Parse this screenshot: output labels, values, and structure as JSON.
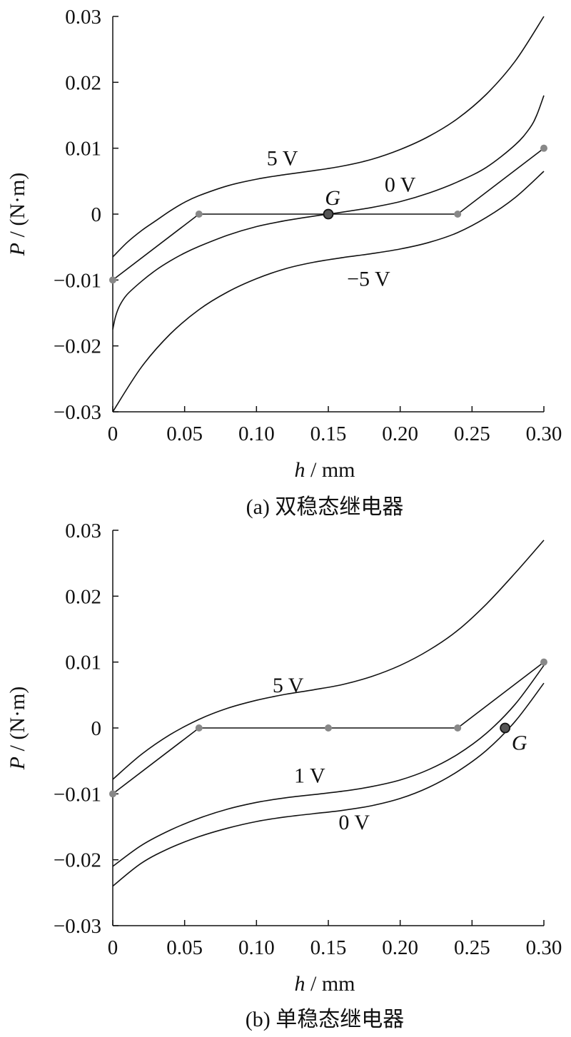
{
  "colors": {
    "curve": "#111111",
    "point": "#888888",
    "equilibrium": "#555555"
  },
  "chart_data": [
    {
      "type": "line",
      "caption": "(a)  双稳态继电器",
      "xlabel_var": "h",
      "xlabel_unit": " / mm",
      "ylabel_var": "P",
      "ylabel_unit": " / (N·m)",
      "xlim": [
        0,
        0.3
      ],
      "ylim": [
        -0.03,
        0.03
      ],
      "xticks": [
        0,
        0.05,
        0.1,
        0.15,
        0.2,
        0.25,
        0.3
      ],
      "xtick_labels": [
        "0",
        "0.05",
        "0.10",
        "0.15",
        "0.20",
        "0.25",
        "0.30"
      ],
      "yticks": [
        0.03,
        0.02,
        0.01,
        0,
        -0.01,
        -0.02,
        -0.03
      ],
      "ytick_labels": [
        "0.03",
        "0.02",
        "0.01",
        "0",
        "−0.01",
        "−0.02",
        "−0.03"
      ],
      "grid": false,
      "series": [
        {
          "name": "5 V",
          "x": [
            0,
            0.01,
            0.02,
            0.03,
            0.04,
            0.05,
            0.06,
            0.08,
            0.1,
            0.12,
            0.14,
            0.16,
            0.18,
            0.2,
            0.22,
            0.24,
            0.26,
            0.28,
            0.3
          ],
          "y": [
            -0.0065,
            -0.0043,
            -0.0025,
            -0.001,
            0.0005,
            0.0018,
            0.0028,
            0.0043,
            0.0053,
            0.006,
            0.0066,
            0.0073,
            0.0083,
            0.0098,
            0.0118,
            0.0145,
            0.0182,
            0.0232,
            0.03
          ]
        },
        {
          "name": "0 V",
          "x": [
            0,
            0.002,
            0.005,
            0.01,
            0.02,
            0.03,
            0.04,
            0.05,
            0.06,
            0.08,
            0.1,
            0.12,
            0.14,
            0.15,
            0.16,
            0.18,
            0.2,
            0.22,
            0.24,
            0.26,
            0.28,
            0.29,
            0.295,
            0.3
          ],
          "y": [
            -0.0175,
            -0.0155,
            -0.0138,
            -0.0122,
            -0.0102,
            -0.0085,
            -0.0071,
            -0.0059,
            -0.0049,
            -0.0032,
            -0.0019,
            -0.001,
            -0.0003,
            0,
            0.0003,
            0.001,
            0.0019,
            0.0032,
            0.0049,
            0.0071,
            0.0105,
            0.013,
            0.015,
            0.018
          ]
        },
        {
          "name": "−5 V",
          "x": [
            0,
            0.02,
            0.04,
            0.06,
            0.08,
            0.1,
            0.12,
            0.14,
            0.16,
            0.18,
            0.2,
            0.22,
            0.24,
            0.26,
            0.28,
            0.3
          ],
          "y": [
            -0.03,
            -0.0232,
            -0.0182,
            -0.0145,
            -0.0118,
            -0.0098,
            -0.0083,
            -0.0073,
            -0.0066,
            -0.006,
            -0.0053,
            -0.0043,
            -0.0028,
            -0.0005,
            0.0025,
            0.0065
          ]
        },
        {
          "name": "",
          "x": [
            0,
            0.06,
            0.15,
            0.24,
            0.3
          ],
          "y": [
            -0.01,
            0,
            0,
            0,
            0.01
          ],
          "markers": true
        }
      ],
      "annotations": [
        {
          "text": "5 V",
          "x": 0.118,
          "y": 0.0085
        },
        {
          "text": "0 V",
          "x": 0.2,
          "y": 0.0045
        },
        {
          "text": "−5 V",
          "x": 0.178,
          "y": -0.0098
        },
        {
          "text": "G",
          "x": 0.153,
          "y": 0.0025,
          "italic": true
        }
      ],
      "equilibrium_point": {
        "label": "G",
        "x": 0.15,
        "y": 0
      }
    },
    {
      "type": "line",
      "caption": "(b)  单稳态继电器",
      "xlabel_var": "h",
      "xlabel_unit": " / mm",
      "ylabel_var": "P",
      "ylabel_unit": " / (N·m)",
      "xlim": [
        0,
        0.3
      ],
      "ylim": [
        -0.03,
        0.03
      ],
      "xticks": [
        0,
        0.05,
        0.1,
        0.15,
        0.2,
        0.25,
        0.3
      ],
      "xtick_labels": [
        "0",
        "0.05",
        "0.10",
        "0.15",
        "0.20",
        "0.25",
        "0.30"
      ],
      "yticks": [
        0.03,
        0.02,
        0.01,
        0,
        -0.01,
        -0.02,
        -0.03
      ],
      "ytick_labels": [
        "0.03",
        "0.02",
        "0.01",
        "0",
        "−0.01",
        "−0.02",
        "−0.03"
      ],
      "grid": false,
      "series": [
        {
          "name": "5 V",
          "x": [
            0,
            0.02,
            0.04,
            0.06,
            0.08,
            0.1,
            0.12,
            0.14,
            0.16,
            0.18,
            0.2,
            0.22,
            0.24,
            0.26,
            0.28,
            0.3
          ],
          "y": [
            -0.0078,
            -0.004,
            -0.001,
            0.0013,
            0.003,
            0.0042,
            0.0051,
            0.0058,
            0.0066,
            0.0078,
            0.0095,
            0.0118,
            0.0148,
            0.0188,
            0.0235,
            0.0285
          ]
        },
        {
          "name": "1 V",
          "x": [
            0,
            0.02,
            0.04,
            0.06,
            0.08,
            0.1,
            0.12,
            0.14,
            0.16,
            0.18,
            0.2,
            0.22,
            0.24,
            0.26,
            0.28,
            0.3
          ],
          "y": [
            -0.021,
            -0.0178,
            -0.0155,
            -0.0137,
            -0.0123,
            -0.0113,
            -0.0106,
            -0.0101,
            -0.0096,
            -0.0089,
            -0.0079,
            -0.0063,
            -0.004,
            -0.0008,
            0.0036,
            0.0095
          ]
        },
        {
          "name": "0 V",
          "x": [
            0,
            0.02,
            0.04,
            0.06,
            0.08,
            0.1,
            0.12,
            0.14,
            0.16,
            0.18,
            0.2,
            0.22,
            0.24,
            0.26,
            0.28,
            0.3
          ],
          "y": [
            -0.024,
            -0.0205,
            -0.0182,
            -0.0165,
            -0.0152,
            -0.0142,
            -0.0135,
            -0.013,
            -0.0125,
            -0.0118,
            -0.0107,
            -0.009,
            -0.0066,
            -0.0034,
            0.001,
            0.0068
          ]
        },
        {
          "name": "",
          "x": [
            0,
            0.06,
            0.15,
            0.24,
            0.3
          ],
          "y": [
            -0.01,
            0,
            0,
            0,
            0.01
          ],
          "markers": true
        }
      ],
      "annotations": [
        {
          "text": "5 V",
          "x": 0.122,
          "y": 0.0065
        },
        {
          "text": "1 V",
          "x": 0.137,
          "y": -0.0072
        },
        {
          "text": "0 V",
          "x": 0.168,
          "y": -0.0143
        },
        {
          "text": "G",
          "x": 0.283,
          "y": -0.0022,
          "italic": true
        }
      ],
      "equilibrium_point": {
        "label": "G",
        "x": 0.273,
        "y": 0
      }
    }
  ]
}
